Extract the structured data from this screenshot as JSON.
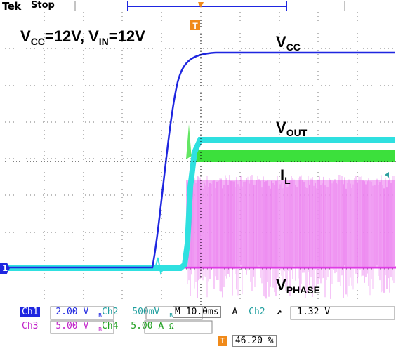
{
  "header": {
    "brand": "Tek",
    "run_state": "Stop"
  },
  "annotations": {
    "title_vcc": "V",
    "title_vcc_sub": "CC",
    "title_eq1": "=12V, V",
    "title_in_sub": "IN",
    "title_eq2": "=12V",
    "vcc_label": "V",
    "vcc_sub": "CC",
    "vout_label": "V",
    "vout_sub": "OUT",
    "il_label": "I",
    "il_sub": "L",
    "vphase_label": "V",
    "vphase_sub": "PHASE"
  },
  "channel_marker": "1",
  "trigger_marker": "T",
  "status": {
    "ch1_name": "Ch1",
    "ch1_scale": "2.00 V",
    "ch1_bw": "B",
    "ch2_name": "Ch2",
    "ch2_scale": "500mV",
    "ch2_bw": "B",
    "ch3_name": "Ch3",
    "ch3_scale": "5.00 V",
    "ch3_bw": "B",
    "ch4_name": "Ch4",
    "ch4_scale": "5.00 A",
    "ch4_unit_icon": "Ω",
    "timebase": "M 10.0ms",
    "trigger_mode": "A",
    "trigger_source": "Ch2",
    "trigger_slope_icon": "rising-edge",
    "trigger_level": "1.32 V",
    "trigger_position": "46.20 %"
  },
  "colors": {
    "ch1": "#1e26e0",
    "ch2": "#2fe0e0",
    "ch3": "#e03ce6",
    "ch4": "#3ce03c",
    "trigger": "#f08a1a"
  }
}
